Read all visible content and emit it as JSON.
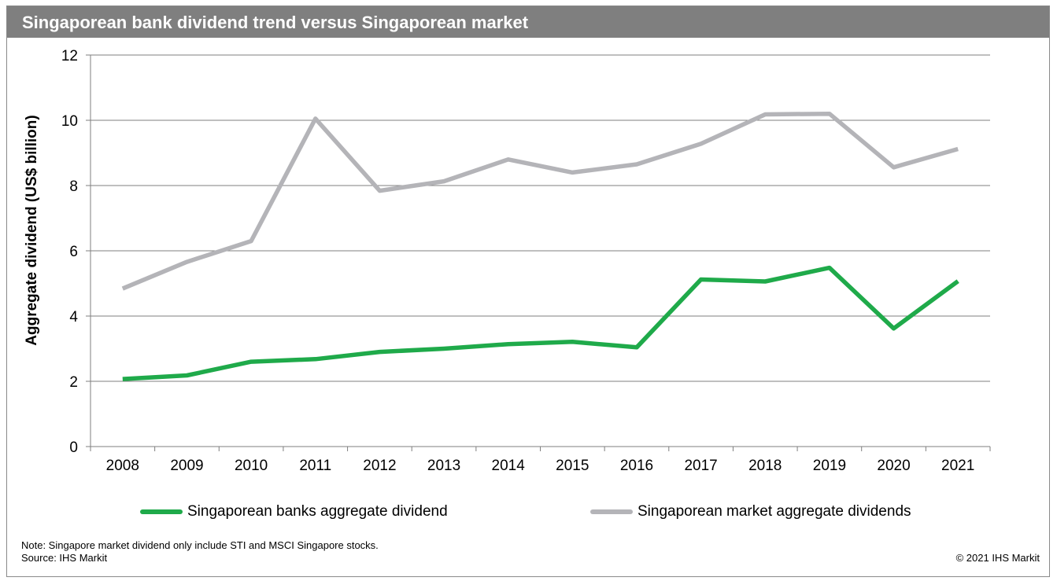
{
  "title": "Singaporean bank dividend trend versus Singaporean market",
  "chart_data": {
    "type": "line",
    "title": "Singaporean bank dividend trend versus Singaporean market",
    "xlabel": "",
    "ylabel": "Aggregate dividend (US$ billion)",
    "x": [
      "2008",
      "2009",
      "2010",
      "2011",
      "2012",
      "2013",
      "2014",
      "2015",
      "2016",
      "2017",
      "2018",
      "2019",
      "2020",
      "2021"
    ],
    "ylim": [
      0,
      12
    ],
    "yticks": [
      "0",
      "2",
      "4",
      "6",
      "8",
      "10",
      "12"
    ],
    "grid": "horizontal",
    "legend_position": "bottom",
    "series": [
      {
        "name": "Singaporean banks aggregate dividend",
        "color": "#1faa4a",
        "values": [
          2.07,
          2.18,
          2.6,
          2.68,
          2.9,
          3.0,
          3.14,
          3.21,
          3.04,
          5.12,
          5.06,
          5.48,
          3.62,
          5.07
        ]
      },
      {
        "name": "Singaporean market aggregate dividends",
        "color": "#b4b4b8",
        "values": [
          4.84,
          5.66,
          6.3,
          10.05,
          7.84,
          8.13,
          8.8,
          8.4,
          8.65,
          9.28,
          10.18,
          10.2,
          8.56,
          9.12
        ]
      }
    ]
  },
  "note": "Note: Singapore market dividend only include STI and MSCI Singapore stocks.",
  "source": "Source: IHS Markit",
  "copyright": "© 2021 IHS Markit"
}
